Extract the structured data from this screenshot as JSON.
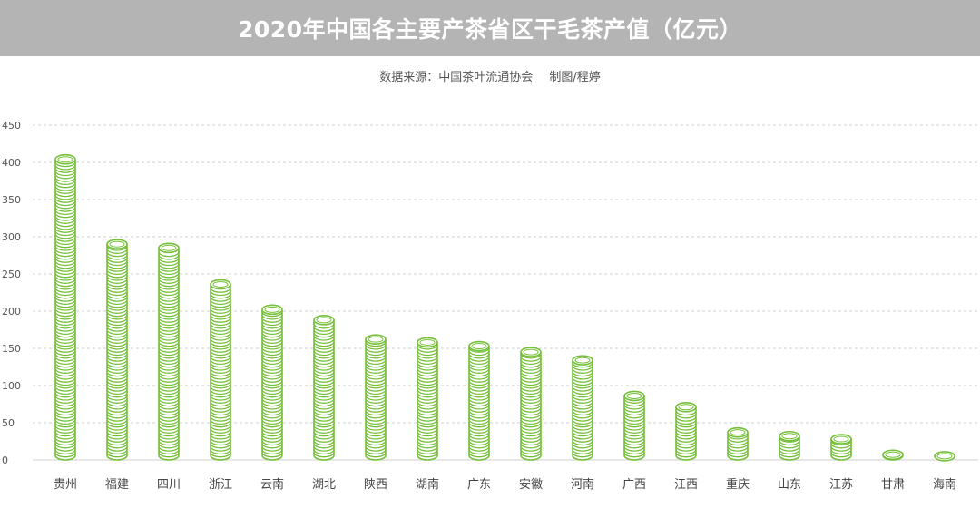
{
  "header": {
    "title": "2020年中国各主要产茶省区干毛茶产值（亿元）"
  },
  "source": {
    "data_source": "数据来源：中国茶叶流通协会",
    "author": "制图/程婷"
  },
  "colors": {
    "title_bar": "#b4b4b4",
    "coin_stroke": "#76bf3a",
    "grid": "#cfcfcf"
  },
  "chart_data": {
    "type": "bar",
    "title": "2020年中国各主要产茶省区干毛茶产值（亿元）",
    "categories": [
      "贵州",
      "福建",
      "四川",
      "浙江",
      "云南",
      "湖北",
      "陕西",
      "湖南",
      "广东",
      "安徽",
      "河南",
      "广西",
      "江西",
      "重庆",
      "山东",
      "江苏",
      "甘肃",
      "海南"
    ],
    "values": [
      404,
      290,
      285,
      236,
      202,
      188,
      162,
      158,
      153,
      145,
      134,
      86,
      71,
      37,
      32,
      28,
      7,
      5
    ],
    "ylim": [
      0,
      450
    ],
    "yticks": [
      0,
      50,
      100,
      150,
      200,
      250,
      300,
      350,
      400,
      450
    ],
    "grid": true,
    "xlabel": "",
    "ylabel": ""
  }
}
